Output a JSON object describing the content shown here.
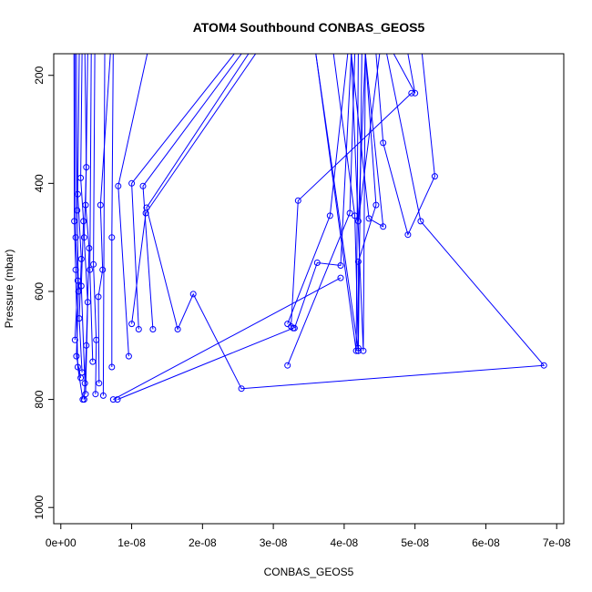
{
  "chart_data": {
    "type": "line",
    "title": "ATOM4 Southbound CONBAS_GEOS5",
    "xlabel": "CONBAS_GEOS5",
    "ylabel": "Pressure (mbar)",
    "xlim": [
      -1e-09,
      7.1e-08
    ],
    "ylim": [
      1030,
      160
    ],
    "y_reversed": true,
    "x_ticks": [
      {
        "value": 0,
        "label": "0e+00"
      },
      {
        "value": 1e-08,
        "label": "1e-08"
      },
      {
        "value": 2e-08,
        "label": "2e-08"
      },
      {
        "value": 3e-08,
        "label": "3e-08"
      },
      {
        "value": 4e-08,
        "label": "4e-08"
      },
      {
        "value": 5e-08,
        "label": "5e-08"
      },
      {
        "value": 6e-08,
        "label": "6e-08"
      },
      {
        "value": 7e-08,
        "label": "7e-08"
      }
    ],
    "y_ticks": [
      {
        "value": 200,
        "label": "200"
      },
      {
        "value": 400,
        "label": "400"
      },
      {
        "value": 600,
        "label": "600"
      },
      {
        "value": 800,
        "label": "800"
      },
      {
        "value": 1000,
        "label": "1000"
      }
    ],
    "color": "#0000ff",
    "series": [
      {
        "points": [
          [
            2.2e-09,
            160
          ],
          [
            2.3e-09,
            450
          ],
          [
            2.5e-09,
            600
          ],
          [
            2.2e-09,
            720
          ],
          [
            2.8e-09,
            760
          ]
        ]
      },
      {
        "points": [
          [
            2.6e-09,
            160
          ],
          [
            2.4e-09,
            420
          ],
          [
            2.9e-09,
            540
          ],
          [
            2.6e-09,
            650
          ],
          [
            3e-09,
            750
          ]
        ]
      },
      {
        "points": [
          [
            3e-09,
            160
          ],
          [
            2.8e-09,
            390
          ],
          [
            3.2e-09,
            470
          ],
          [
            2.9e-09,
            590
          ],
          [
            3.4e-09,
            770
          ]
        ]
      },
      {
        "points": [
          [
            3.4e-09,
            160
          ],
          [
            3.6e-09,
            370
          ],
          [
            3.3e-09,
            500
          ],
          [
            3.8e-09,
            620
          ],
          [
            3.5e-09,
            790
          ]
        ]
      },
      {
        "points": [
          [
            3.8e-09,
            160
          ],
          [
            3.5e-09,
            440
          ],
          [
            4e-09,
            520
          ],
          [
            3.6e-09,
            700
          ],
          [
            3.3e-09,
            800
          ]
        ]
      },
      {
        "points": [
          [
            2e-09,
            160
          ],
          [
            2.1e-09,
            500
          ],
          [
            2.4e-09,
            580
          ],
          [
            2e-09,
            690
          ]
        ]
      },
      {
        "points": [
          [
            4.3e-09,
            160
          ],
          [
            4.1e-09,
            560
          ],
          [
            4.5e-09,
            730
          ]
        ]
      },
      {
        "points": [
          [
            4.8e-09,
            160
          ],
          [
            4.6e-09,
            550
          ],
          [
            5e-09,
            690
          ],
          [
            4.9e-09,
            790
          ]
        ]
      },
      {
        "points": [
          [
            7e-09,
            160
          ],
          [
            5.6e-09,
            440
          ],
          [
            5.9e-09,
            560
          ],
          [
            5.3e-09,
            610
          ],
          [
            5.4e-09,
            770
          ]
        ]
      },
      {
        "points": [
          [
            7.4e-09,
            160
          ],
          [
            7.2e-09,
            500
          ],
          [
            7.2e-09,
            740
          ]
        ]
      },
      {
        "points": [
          [
            1.22e-08,
            160
          ],
          [
            8.1e-09,
            405
          ],
          [
            9.6e-09,
            720
          ]
        ]
      },
      {
        "points": [
          [
            2.45e-08,
            160
          ],
          [
            1e-08,
            400
          ],
          [
            1.1e-08,
            670
          ]
        ]
      },
      {
        "points": [
          [
            2.55e-08,
            160
          ],
          [
            1.16e-08,
            405
          ],
          [
            1.3e-08,
            670
          ]
        ]
      },
      {
        "points": [
          [
            2.65e-08,
            160
          ],
          [
            1.21e-08,
            445
          ],
          [
            1.65e-08,
            670
          ],
          [
            1.87e-08,
            605
          ],
          [
            2.55e-08,
            780
          ],
          [
            6.82e-08,
            737
          ],
          [
            5.08e-08,
            470
          ],
          [
            4.6e-08,
            160
          ]
        ]
      },
      {
        "points": [
          [
            2.75e-08,
            160
          ],
          [
            1.2e-08,
            455
          ],
          [
            1e-08,
            660
          ]
        ]
      },
      {
        "points": [
          [
            1.85e-09,
            160
          ],
          [
            1.9e-09,
            470
          ],
          [
            2.1e-09,
            560
          ],
          [
            2.4e-09,
            740
          ],
          [
            3.1e-09,
            800
          ]
        ]
      },
      {
        "points": [
          [
            3.6e-08,
            160
          ],
          [
            4.17e-08,
            710
          ],
          [
            4.2e-08,
            160
          ]
        ]
      },
      {
        "points": [
          [
            3.6e-08,
            160
          ],
          [
            4.2e-08,
            710
          ],
          [
            4.25e-08,
            160
          ]
        ]
      },
      {
        "points": [
          [
            3.85e-08,
            160
          ],
          [
            4.15e-08,
            460
          ],
          [
            4.2e-08,
            710
          ]
        ]
      },
      {
        "points": [
          [
            4.1e-08,
            160
          ],
          [
            4.27e-08,
            710
          ],
          [
            4.3e-08,
            160
          ]
        ]
      },
      {
        "points": [
          [
            4.3e-08,
            160
          ],
          [
            4.45e-08,
            440
          ],
          [
            4.2e-08,
            545
          ],
          [
            4.2e-08,
            705
          ]
        ]
      },
      {
        "points": [
          [
            4.45e-08,
            160
          ],
          [
            4.55e-08,
            325
          ],
          [
            4.9e-08,
            495
          ],
          [
            5.28e-08,
            387
          ],
          [
            5.1e-08,
            160
          ]
        ]
      },
      {
        "points": [
          [
            4.7e-08,
            160
          ],
          [
            5e-08,
            233
          ],
          [
            4.9e-08,
            160
          ]
        ]
      },
      {
        "points": [
          [
            4.5e-08,
            160
          ],
          [
            4.2e-08,
            470
          ],
          [
            4.3e-08,
            160
          ]
        ]
      },
      {
        "points": [
          [
            4.3e-08,
            160
          ],
          [
            4.55e-08,
            480
          ],
          [
            4.35e-08,
            465
          ],
          [
            4.1e-08,
            160
          ]
        ]
      },
      {
        "points": [
          [
            3.2e-08,
            660
          ],
          [
            3.8e-08,
            460
          ],
          [
            4.05e-08,
            160
          ]
        ]
      },
      {
        "points": [
          [
            3.2e-08,
            737
          ],
          [
            4.08e-08,
            455
          ],
          [
            4.15e-08,
            160
          ]
        ]
      },
      {
        "points": [
          [
            3.25e-08,
            665
          ],
          [
            3.35e-08,
            432
          ],
          [
            4.95e-08,
            233
          ]
        ]
      },
      {
        "points": [
          [
            3.3e-08,
            668
          ],
          [
            3.62e-08,
            547
          ],
          [
            3.95e-08,
            552
          ],
          [
            4.1e-08,
            160
          ]
        ]
      },
      {
        "points": [
          [
            7.4e-09,
            800
          ],
          [
            3.95e-08,
            575
          ]
        ]
      },
      {
        "points": [
          [
            8e-09,
            800
          ],
          [
            3.28e-08,
            668
          ]
        ]
      },
      {
        "points": [
          [
            6e-09,
            793
          ],
          [
            6.2e-09,
            160
          ]
        ]
      }
    ]
  }
}
